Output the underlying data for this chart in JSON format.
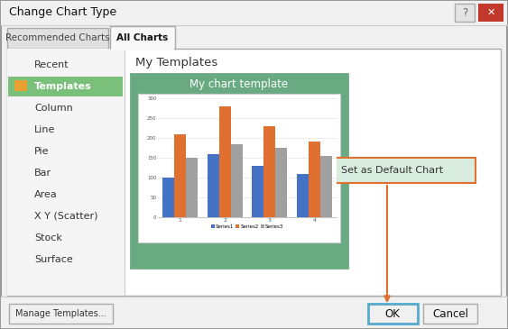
{
  "title": "Change Chart Type",
  "bg_color": "#f0f0f0",
  "tab_inactive": "Recommended Charts",
  "tab_active": "All Charts",
  "sidebar_items": [
    "Recent",
    "Templates",
    "Column",
    "Line",
    "Pie",
    "Bar",
    "Area",
    "X Y (Scatter)",
    "Stock",
    "Surface"
  ],
  "sidebar_selected": "Templates",
  "sidebar_selected_color": "#7abf7a",
  "panel_title": "My Templates",
  "chart_title": "My chart template",
  "chart_bg": "#6aaa82",
  "series1": [
    100,
    160,
    130,
    110
  ],
  "series2": [
    210,
    280,
    230,
    190
  ],
  "series3": [
    150,
    185,
    175,
    155
  ],
  "series_colors": [
    "#4472c4",
    "#e07030",
    "#a0a0a0"
  ],
  "series_labels": [
    "Series1",
    "Series2",
    "Series3"
  ],
  "x_labels": [
    "1",
    "2",
    "3",
    "4"
  ],
  "y_ticks": [
    0,
    50,
    100,
    150,
    200,
    250,
    300
  ],
  "button_ok": "OK",
  "button_cancel": "Cancel",
  "button_manage": "Manage Templates...",
  "set_default_text": "Set as Default Chart",
  "set_default_bg": "#d8ede0",
  "set_default_border": "#e07030",
  "arrow_color": "#e07030",
  "ok_border": "#55aacc",
  "close_btn_color": "#c0392b"
}
